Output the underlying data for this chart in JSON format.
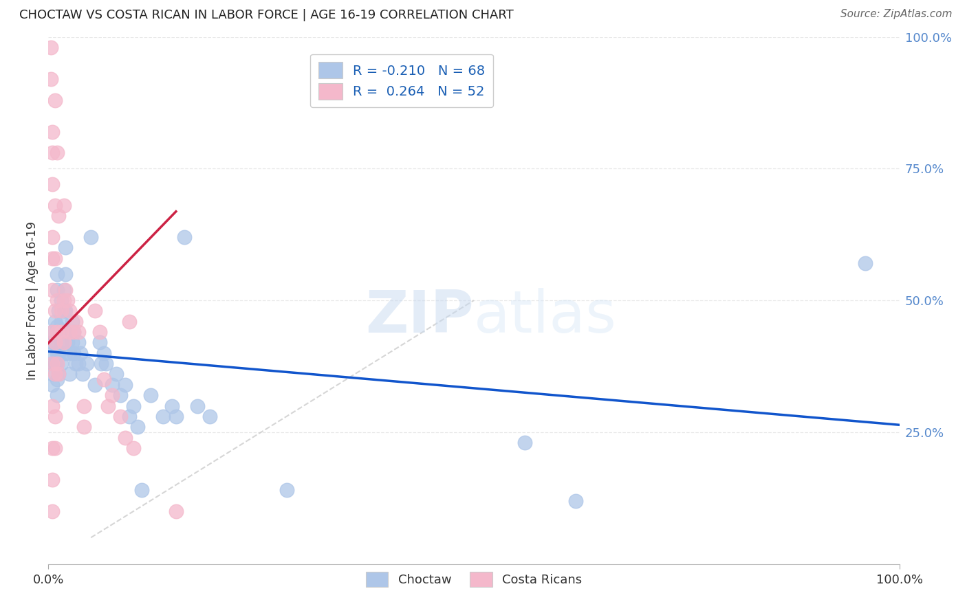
{
  "title": "CHOCTAW VS COSTA RICAN IN LABOR FORCE | AGE 16-19 CORRELATION CHART",
  "source": "Source: ZipAtlas.com",
  "ylabel": "In Labor Force | Age 16-19",
  "xlim": [
    0.0,
    1.0
  ],
  "ylim": [
    0.0,
    1.0
  ],
  "choctaw_color": "#aec6e8",
  "costa_rican_color": "#f4b8cb",
  "choctaw_line_color": "#1155cc",
  "costa_rican_line_color": "#cc2244",
  "diagonal_color": "#cccccc",
  "legend_choctaw_label": "R = -0.210   N = 68",
  "legend_costa_rican_label": "R =  0.264   N = 52",
  "watermark_text": "ZIPatlas",
  "grid_color": "#e8e8e8",
  "choctaw_points": [
    [
      0.005,
      0.42
    ],
    [
      0.005,
      0.44
    ],
    [
      0.005,
      0.4
    ],
    [
      0.005,
      0.38
    ],
    [
      0.005,
      0.36
    ],
    [
      0.005,
      0.34
    ],
    [
      0.008,
      0.46
    ],
    [
      0.008,
      0.42
    ],
    [
      0.008,
      0.38
    ],
    [
      0.01,
      0.55
    ],
    [
      0.01,
      0.52
    ],
    [
      0.01,
      0.45
    ],
    [
      0.01,
      0.4
    ],
    [
      0.01,
      0.38
    ],
    [
      0.01,
      0.35
    ],
    [
      0.01,
      0.32
    ],
    [
      0.012,
      0.48
    ],
    [
      0.012,
      0.44
    ],
    [
      0.012,
      0.4
    ],
    [
      0.012,
      0.36
    ],
    [
      0.015,
      0.5
    ],
    [
      0.015,
      0.46
    ],
    [
      0.015,
      0.42
    ],
    [
      0.015,
      0.38
    ],
    [
      0.018,
      0.52
    ],
    [
      0.018,
      0.48
    ],
    [
      0.02,
      0.6
    ],
    [
      0.02,
      0.55
    ],
    [
      0.02,
      0.48
    ],
    [
      0.02,
      0.44
    ],
    [
      0.02,
      0.4
    ],
    [
      0.022,
      0.42
    ],
    [
      0.025,
      0.44
    ],
    [
      0.025,
      0.4
    ],
    [
      0.025,
      0.36
    ],
    [
      0.028,
      0.46
    ],
    [
      0.028,
      0.42
    ],
    [
      0.03,
      0.44
    ],
    [
      0.03,
      0.4
    ],
    [
      0.032,
      0.38
    ],
    [
      0.035,
      0.42
    ],
    [
      0.035,
      0.38
    ],
    [
      0.038,
      0.4
    ],
    [
      0.04,
      0.36
    ],
    [
      0.045,
      0.38
    ],
    [
      0.05,
      0.62
    ],
    [
      0.055,
      0.34
    ],
    [
      0.06,
      0.42
    ],
    [
      0.062,
      0.38
    ],
    [
      0.065,
      0.4
    ],
    [
      0.068,
      0.38
    ],
    [
      0.075,
      0.34
    ],
    [
      0.08,
      0.36
    ],
    [
      0.085,
      0.32
    ],
    [
      0.09,
      0.34
    ],
    [
      0.095,
      0.28
    ],
    [
      0.1,
      0.3
    ],
    [
      0.105,
      0.26
    ],
    [
      0.11,
      0.14
    ],
    [
      0.12,
      0.32
    ],
    [
      0.135,
      0.28
    ],
    [
      0.145,
      0.3
    ],
    [
      0.15,
      0.28
    ],
    [
      0.16,
      0.62
    ],
    [
      0.175,
      0.3
    ],
    [
      0.19,
      0.28
    ],
    [
      0.28,
      0.14
    ],
    [
      0.56,
      0.23
    ],
    [
      0.62,
      0.12
    ],
    [
      0.96,
      0.57
    ]
  ],
  "costa_rican_points": [
    [
      0.003,
      0.98
    ],
    [
      0.003,
      0.92
    ],
    [
      0.005,
      0.82
    ],
    [
      0.005,
      0.78
    ],
    [
      0.005,
      0.72
    ],
    [
      0.005,
      0.62
    ],
    [
      0.005,
      0.58
    ],
    [
      0.005,
      0.52
    ],
    [
      0.005,
      0.44
    ],
    [
      0.005,
      0.38
    ],
    [
      0.005,
      0.3
    ],
    [
      0.005,
      0.22
    ],
    [
      0.005,
      0.16
    ],
    [
      0.005,
      0.1
    ],
    [
      0.008,
      0.88
    ],
    [
      0.008,
      0.68
    ],
    [
      0.008,
      0.58
    ],
    [
      0.008,
      0.48
    ],
    [
      0.008,
      0.42
    ],
    [
      0.008,
      0.36
    ],
    [
      0.008,
      0.28
    ],
    [
      0.008,
      0.22
    ],
    [
      0.01,
      0.78
    ],
    [
      0.01,
      0.5
    ],
    [
      0.01,
      0.44
    ],
    [
      0.01,
      0.38
    ],
    [
      0.012,
      0.66
    ],
    [
      0.012,
      0.36
    ],
    [
      0.015,
      0.48
    ],
    [
      0.015,
      0.44
    ],
    [
      0.018,
      0.68
    ],
    [
      0.018,
      0.5
    ],
    [
      0.018,
      0.42
    ],
    [
      0.02,
      0.52
    ],
    [
      0.022,
      0.5
    ],
    [
      0.025,
      0.48
    ],
    [
      0.025,
      0.44
    ],
    [
      0.03,
      0.44
    ],
    [
      0.032,
      0.46
    ],
    [
      0.035,
      0.44
    ],
    [
      0.042,
      0.3
    ],
    [
      0.042,
      0.26
    ],
    [
      0.055,
      0.48
    ],
    [
      0.06,
      0.44
    ],
    [
      0.065,
      0.35
    ],
    [
      0.07,
      0.3
    ],
    [
      0.075,
      0.32
    ],
    [
      0.085,
      0.28
    ],
    [
      0.09,
      0.24
    ],
    [
      0.095,
      0.46
    ],
    [
      0.1,
      0.22
    ],
    [
      0.15,
      0.1
    ]
  ]
}
